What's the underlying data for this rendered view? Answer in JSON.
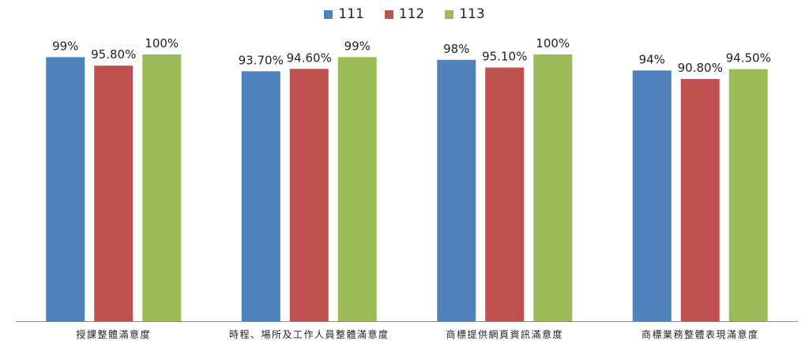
{
  "chart_data": {
    "type": "bar",
    "categories": [
      "授課整體滿意度",
      "時程、場所及工作人員整體滿意度",
      "商標提供網頁資訊滿意度",
      "商標業務整體表現滿意度"
    ],
    "series": [
      {
        "name": "111",
        "color": "#4F81BD",
        "values": [
          99,
          93.7,
          98,
          94
        ],
        "labels": [
          "99%",
          "93.70%",
          "98%",
          "94%"
        ]
      },
      {
        "name": "112",
        "color": "#C0504D",
        "values": [
          95.8,
          94.6,
          95.1,
          90.8
        ],
        "labels": [
          "95.80%",
          "94.60%",
          "95.10%",
          "90.80%"
        ]
      },
      {
        "name": "113",
        "color": "#9BBB59",
        "values": [
          100,
          99,
          100,
          94.5
        ],
        "labels": [
          "100%",
          "99%",
          "100%",
          "94.50%"
        ]
      }
    ],
    "ylim": [
      0,
      100
    ],
    "legend_position": "top-center",
    "grid": false
  }
}
